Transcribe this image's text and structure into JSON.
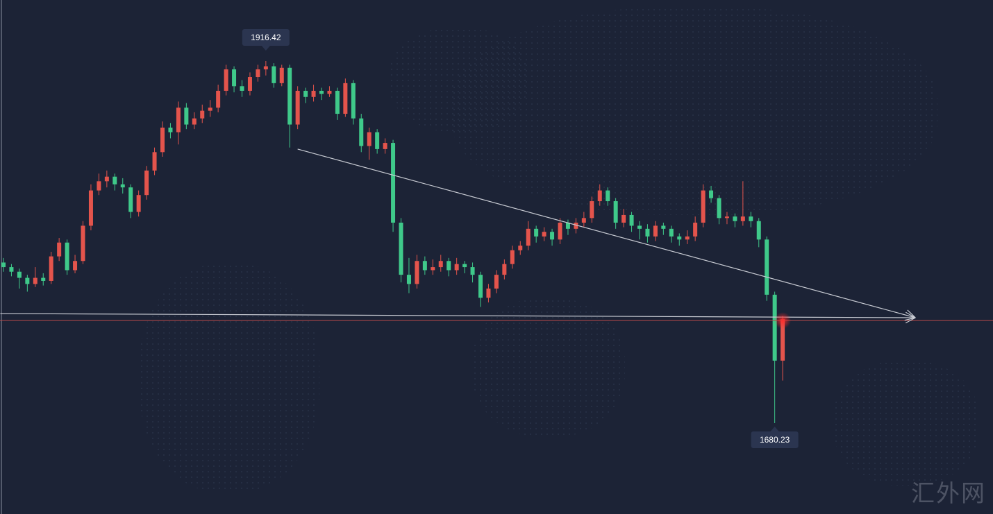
{
  "chart_data": {
    "type": "candlestick",
    "title": "",
    "colors": {
      "background": "#1c2336",
      "up": "#e4544c",
      "down": "#3fc98a",
      "trendline": "#c9ccd4",
      "current_price_line": "#b94a4a",
      "label_bg": "#2b3550"
    },
    "y_mapping": {
      "ref_high": 1916.42,
      "ref_low": 1680.23
    },
    "candles": [
      [
        1785,
        1788,
        1779,
        1782
      ],
      [
        1782,
        1784,
        1776,
        1779
      ],
      [
        1779,
        1781,
        1768,
        1775
      ],
      [
        1775,
        1777,
        1766,
        1771
      ],
      [
        1771,
        1782,
        1769,
        1775
      ],
      [
        1775,
        1778,
        1770,
        1773
      ],
      [
        1773,
        1792,
        1771,
        1789
      ],
      [
        1789,
        1801,
        1786,
        1798
      ],
      [
        1798,
        1800,
        1777,
        1780
      ],
      [
        1780,
        1790,
        1778,
        1786
      ],
      [
        1786,
        1812,
        1784,
        1809
      ],
      [
        1809,
        1836,
        1806,
        1832
      ],
      [
        1832,
        1843,
        1829,
        1838
      ],
      [
        1838,
        1845,
        1834,
        1841
      ],
      [
        1841,
        1843,
        1832,
        1836
      ],
      [
        1836,
        1840,
        1830,
        1834
      ],
      [
        1834,
        1836,
        1814,
        1818
      ],
      [
        1818,
        1832,
        1815,
        1829
      ],
      [
        1829,
        1848,
        1826,
        1845
      ],
      [
        1845,
        1860,
        1842,
        1857
      ],
      [
        1857,
        1877,
        1854,
        1873
      ],
      [
        1873,
        1876,
        1866,
        1870
      ],
      [
        1870,
        1890,
        1862,
        1886
      ],
      [
        1886,
        1889,
        1872,
        1875
      ],
      [
        1875,
        1883,
        1872,
        1879
      ],
      [
        1879,
        1888,
        1876,
        1884
      ],
      [
        1884,
        1891,
        1880,
        1886
      ],
      [
        1886,
        1901,
        1883,
        1897
      ],
      [
        1897,
        1914,
        1894,
        1911
      ],
      [
        1911,
        1913,
        1896,
        1900
      ],
      [
        1900,
        1904,
        1893,
        1897
      ],
      [
        1897,
        1909,
        1894,
        1906
      ],
      [
        1906,
        1914,
        1903,
        1911
      ],
      [
        1911,
        1916.42,
        1907,
        1913
      ],
      [
        1913,
        1915,
        1899,
        1902
      ],
      [
        1902,
        1914,
        1900,
        1912
      ],
      [
        1912,
        1914,
        1860,
        1875
      ],
      [
        1875,
        1900,
        1872,
        1897
      ],
      [
        1897,
        1899,
        1889,
        1893
      ],
      [
        1893,
        1901,
        1890,
        1897
      ],
      [
        1897,
        1899,
        1891,
        1895
      ],
      [
        1895,
        1900,
        1893,
        1897
      ],
      [
        1897,
        1899,
        1878,
        1882
      ],
      [
        1882,
        1905,
        1880,
        1902
      ],
      [
        1902,
        1904,
        1875,
        1879
      ],
      [
        1879,
        1882,
        1857,
        1861
      ],
      [
        1861,
        1873,
        1852,
        1870
      ],
      [
        1870,
        1872,
        1856,
        1859
      ],
      [
        1859,
        1866,
        1856,
        1863
      ],
      [
        1863,
        1865,
        1805,
        1811
      ],
      [
        1811,
        1814,
        1772,
        1777
      ],
      [
        1777,
        1788,
        1765,
        1771
      ],
      [
        1771,
        1790,
        1768,
        1786
      ],
      [
        1786,
        1789,
        1777,
        1780
      ],
      [
        1780,
        1787,
        1777,
        1782
      ],
      [
        1782,
        1790,
        1779,
        1786
      ],
      [
        1786,
        1788,
        1776,
        1780
      ],
      [
        1780,
        1788,
        1777,
        1784
      ],
      [
        1784,
        1786,
        1778,
        1782
      ],
      [
        1782,
        1785,
        1772,
        1777
      ],
      [
        1777,
        1779,
        1756,
        1762
      ],
      [
        1762,
        1771,
        1759,
        1768
      ],
      [
        1768,
        1780,
        1765,
        1777
      ],
      [
        1777,
        1787,
        1774,
        1784
      ],
      [
        1784,
        1796,
        1781,
        1793
      ],
      [
        1793,
        1799,
        1790,
        1796
      ],
      [
        1796,
        1812,
        1793,
        1807
      ],
      [
        1807,
        1809,
        1798,
        1802
      ],
      [
        1802,
        1808,
        1799,
        1805
      ],
      [
        1805,
        1807,
        1796,
        1800
      ],
      [
        1800,
        1814,
        1797,
        1811
      ],
      [
        1811,
        1813,
        1803,
        1807
      ],
      [
        1807,
        1814,
        1804,
        1811
      ],
      [
        1811,
        1818,
        1808,
        1814
      ],
      [
        1814,
        1828,
        1811,
        1825
      ],
      [
        1825,
        1836,
        1822,
        1832
      ],
      [
        1832,
        1834,
        1822,
        1825
      ],
      [
        1825,
        1827,
        1807,
        1811
      ],
      [
        1811,
        1820,
        1808,
        1816
      ],
      [
        1816,
        1818,
        1805,
        1809
      ],
      [
        1809,
        1812,
        1800,
        1807
      ],
      [
        1807,
        1810,
        1798,
        1802
      ],
      [
        1802,
        1812,
        1799,
        1809
      ],
      [
        1809,
        1811,
        1803,
        1807
      ],
      [
        1807,
        1809,
        1798,
        1802
      ],
      [
        1802,
        1804,
        1796,
        1800
      ],
      [
        1800,
        1806,
        1797,
        1802
      ],
      [
        1802,
        1815,
        1799,
        1811
      ],
      [
        1811,
        1836,
        1808,
        1832
      ],
      [
        1832,
        1835,
        1824,
        1827
      ],
      [
        1827,
        1829,
        1810,
        1814
      ],
      [
        1814,
        1818,
        1810,
        1815
      ],
      [
        1815,
        1817,
        1808,
        1812
      ],
      [
        1812,
        1838,
        1809,
        1815
      ],
      [
        1815,
        1818,
        1808,
        1812
      ],
      [
        1812,
        1814,
        1795,
        1800
      ],
      [
        1800,
        1802,
        1760,
        1764
      ],
      [
        1764,
        1766,
        1680.23,
        1721
      ],
      [
        1721,
        1750,
        1708,
        1748
      ]
    ],
    "annotations": {
      "high_label": {
        "text": "1916.42",
        "candle": 33
      },
      "low_label": {
        "text": "1680.23",
        "candle": 97
      },
      "trendline": {
        "from": [
          37,
          1859
        ],
        "to": [
          114.7,
          1749
        ],
        "arrow": true
      },
      "horizontal_line": {
        "from": [
          -0.4,
          1751.7
        ],
        "to": [
          114.7,
          1749
        ],
        "arrow": true
      },
      "current_price": 1747.2
    }
  },
  "watermark": "汇外网"
}
